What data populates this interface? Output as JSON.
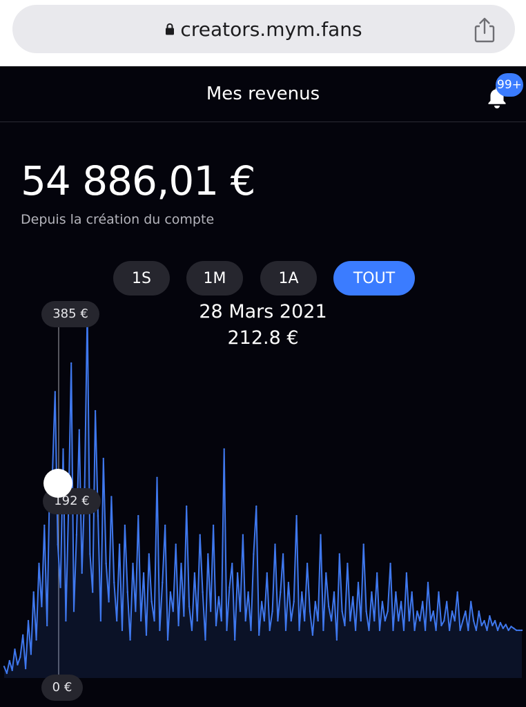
{
  "browser": {
    "url": "creators.mym.fans"
  },
  "header": {
    "title": "Mes revenus",
    "notification_badge": "99+"
  },
  "summary": {
    "amount": "54 886,01 €",
    "subtitle": "Depuis la création du compte"
  },
  "periods": {
    "tabs": [
      {
        "label": "1S",
        "active": false
      },
      {
        "label": "1M",
        "active": false
      },
      {
        "label": "1A",
        "active": false
      },
      {
        "label": "TOUT",
        "active": true
      }
    ]
  },
  "selected_point": {
    "date": "28 Mars 2021",
    "value": "212.8 €"
  },
  "axis": {
    "max_label": "385 €",
    "mid_label": "192 €",
    "min_label": "0 €"
  },
  "colors": {
    "accent": "#3b7cff",
    "line": "#3f78ee",
    "background": "#04040c"
  },
  "chart_data": {
    "type": "line",
    "ylim": [
      0,
      385
    ],
    "y_ticks": [
      "0 €",
      "192 €",
      "385 €"
    ],
    "selected_index": 18,
    "series": [
      {
        "values": [
          12,
          5,
          18,
          8,
          30,
          14,
          22,
          45,
          10,
          60,
          25,
          90,
          40,
          120,
          75,
          160,
          55,
          210,
          212.8,
          300,
          140,
          95,
          240,
          60,
          180,
          330,
          70,
          150,
          260,
          110,
          200,
          385,
          130,
          90,
          280,
          170,
          60,
          230,
          120,
          80,
          190,
          100,
          60,
          140,
          50,
          160,
          90,
          40,
          120,
          70,
          170,
          60,
          110,
          45,
          130,
          80,
          60,
          210,
          50,
          100,
          160,
          40,
          90,
          70,
          140,
          55,
          120,
          65,
          180,
          75,
          50,
          110,
          60,
          150,
          90,
          40,
          130,
          70,
          160,
          55,
          85,
          60,
          240,
          50,
          95,
          120,
          40,
          110,
          70,
          150,
          60,
          90,
          50,
          130,
          180,
          45,
          80,
          60,
          110,
          50,
          70,
          140,
          60,
          90,
          130,
          50,
          100,
          60,
          80,
          170,
          50,
          90,
          60,
          120,
          70,
          45,
          80,
          60,
          150,
          50,
          110,
          75,
          60,
          90,
          40,
          130,
          70,
          55,
          120,
          60,
          85,
          50,
          100,
          60,
          140,
          70,
          50,
          90,
          60,
          110,
          50,
          80,
          60,
          70,
          120,
          50,
          90,
          60,
          80,
          50,
          110,
          60,
          90,
          50,
          70,
          60,
          80,
          50,
          100,
          60,
          70,
          50,
          90,
          55,
          60,
          80,
          50,
          70,
          60,
          90,
          50,
          60,
          70,
          50,
          80,
          60,
          50,
          70,
          55,
          60,
          50,
          65,
          55,
          60,
          50,
          58,
          52,
          56,
          50,
          54,
          52,
          50,
          50,
          50
        ]
      }
    ]
  }
}
